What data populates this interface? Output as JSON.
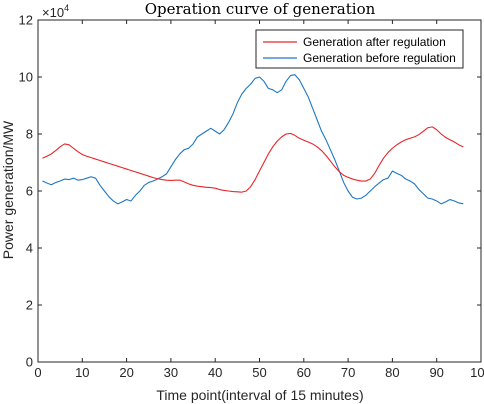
{
  "chart_data": {
    "type": "line",
    "title": "Operation curve of generation",
    "xlabel": "Time point(interval of 15 minutes)",
    "ylabel": "Power generation/MW",
    "y_multiplier_base": "×10",
    "y_multiplier_exp": "4",
    "xlim": [
      0,
      100
    ],
    "ylim": [
      0,
      12
    ],
    "xticks": [
      0,
      10,
      20,
      30,
      40,
      50,
      60,
      70,
      80,
      90,
      100
    ],
    "yticks": [
      0,
      2,
      4,
      6,
      8,
      10,
      12
    ],
    "grid": false,
    "legend_position": "top-right",
    "colors": {
      "after": "#e8262b",
      "before": "#1f77c4"
    },
    "series": [
      {
        "name": "Generation after regulation",
        "color": "#e8262b",
        "x": [
          1,
          2,
          3,
          4,
          5,
          6,
          7,
          8,
          9,
          10,
          11,
          12,
          13,
          14,
          15,
          16,
          17,
          18,
          19,
          20,
          21,
          22,
          23,
          24,
          25,
          26,
          27,
          28,
          29,
          30,
          31,
          32,
          33,
          34,
          35,
          36,
          37,
          38,
          39,
          40,
          41,
          42,
          43,
          44,
          45,
          46,
          47,
          48,
          49,
          50,
          51,
          52,
          53,
          54,
          55,
          56,
          57,
          58,
          59,
          60,
          61,
          62,
          63,
          64,
          65,
          66,
          67,
          68,
          69,
          70,
          71,
          72,
          73,
          74,
          75,
          76,
          77,
          78,
          79,
          80,
          81,
          82,
          83,
          84,
          85,
          86,
          87,
          88,
          89,
          90,
          91,
          92,
          93,
          94,
          95,
          96
        ],
        "values": [
          7.15,
          7.22,
          7.3,
          7.42,
          7.55,
          7.65,
          7.62,
          7.5,
          7.38,
          7.28,
          7.22,
          7.17,
          7.12,
          7.07,
          7.02,
          6.97,
          6.92,
          6.87,
          6.82,
          6.77,
          6.72,
          6.67,
          6.62,
          6.57,
          6.52,
          6.47,
          6.43,
          6.4,
          6.38,
          6.37,
          6.38,
          6.38,
          6.32,
          6.25,
          6.2,
          6.17,
          6.15,
          6.13,
          6.12,
          6.1,
          6.05,
          6.02,
          6.0,
          5.98,
          5.97,
          5.96,
          6.0,
          6.15,
          6.4,
          6.7,
          7.0,
          7.3,
          7.55,
          7.75,
          7.9,
          8.0,
          8.02,
          7.95,
          7.85,
          7.78,
          7.72,
          7.65,
          7.55,
          7.42,
          7.25,
          7.05,
          6.85,
          6.68,
          6.55,
          6.48,
          6.42,
          6.38,
          6.35,
          6.35,
          6.42,
          6.62,
          6.9,
          7.15,
          7.35,
          7.5,
          7.62,
          7.72,
          7.8,
          7.85,
          7.9,
          7.98,
          8.1,
          8.22,
          8.25,
          8.15,
          8.0,
          7.88,
          7.8,
          7.72,
          7.62,
          7.55
        ]
      },
      {
        "name": "Generation before regulation",
        "color": "#1f77c4",
        "x": [
          1,
          2,
          3,
          4,
          5,
          6,
          7,
          8,
          9,
          10,
          11,
          12,
          13,
          14,
          15,
          16,
          17,
          18,
          19,
          20,
          21,
          22,
          23,
          24,
          25,
          26,
          27,
          28,
          29,
          30,
          31,
          32,
          33,
          34,
          35,
          36,
          37,
          38,
          39,
          40,
          41,
          42,
          43,
          44,
          45,
          46,
          47,
          48,
          49,
          50,
          51,
          52,
          53,
          54,
          55,
          56,
          57,
          58,
          59,
          60,
          61,
          62,
          63,
          64,
          65,
          66,
          67,
          68,
          69,
          70,
          71,
          72,
          73,
          74,
          75,
          76,
          77,
          78,
          79,
          80,
          81,
          82,
          83,
          84,
          85,
          86,
          87,
          88,
          89,
          90,
          91,
          92,
          93,
          94,
          95,
          96
        ],
        "values": [
          6.35,
          6.28,
          6.22,
          6.3,
          6.35,
          6.42,
          6.4,
          6.45,
          6.38,
          6.4,
          6.45,
          6.5,
          6.45,
          6.2,
          6.0,
          5.8,
          5.65,
          5.55,
          5.62,
          5.7,
          5.65,
          5.85,
          6.0,
          6.2,
          6.3,
          6.35,
          6.42,
          6.5,
          6.6,
          6.85,
          7.1,
          7.3,
          7.45,
          7.5,
          7.65,
          7.9,
          8.0,
          8.1,
          8.2,
          8.1,
          8.0,
          8.15,
          8.4,
          8.7,
          9.1,
          9.4,
          9.6,
          9.75,
          9.95,
          10.0,
          9.85,
          9.6,
          9.55,
          9.45,
          9.55,
          9.85,
          10.05,
          10.08,
          9.9,
          9.6,
          9.3,
          8.9,
          8.5,
          8.1,
          7.8,
          7.45,
          7.1,
          6.7,
          6.3,
          6.0,
          5.78,
          5.72,
          5.75,
          5.85,
          6.0,
          6.15,
          6.28,
          6.4,
          6.45,
          6.7,
          6.62,
          6.55,
          6.42,
          6.35,
          6.25,
          6.05,
          5.9,
          5.75,
          5.72,
          5.65,
          5.55,
          5.62,
          5.7,
          5.65,
          5.58,
          5.55
        ]
      }
    ]
  }
}
